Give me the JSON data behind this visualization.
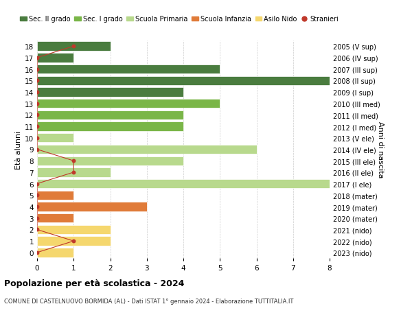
{
  "ages": [
    18,
    17,
    16,
    15,
    14,
    13,
    12,
    11,
    10,
    9,
    8,
    7,
    6,
    5,
    4,
    3,
    2,
    1,
    0
  ],
  "anni_nascita": [
    "2005 (V sup)",
    "2006 (IV sup)",
    "2007 (III sup)",
    "2008 (II sup)",
    "2009 (I sup)",
    "2010 (III med)",
    "2011 (II med)",
    "2012 (I med)",
    "2013 (V ele)",
    "2014 (IV ele)",
    "2015 (III ele)",
    "2016 (II ele)",
    "2017 (I ele)",
    "2018 (mater)",
    "2019 (mater)",
    "2020 (mater)",
    "2021 (nido)",
    "2022 (nido)",
    "2023 (nido)"
  ],
  "bar_values": [
    2,
    1,
    5,
    8,
    4,
    5,
    4,
    4,
    1,
    6,
    4,
    2,
    8,
    1,
    3,
    1,
    2,
    2,
    1
  ],
  "bar_colors": [
    "#4a7c3f",
    "#4a7c3f",
    "#4a7c3f",
    "#4a7c3f",
    "#4a7c3f",
    "#7ab648",
    "#7ab648",
    "#7ab648",
    "#b8d98d",
    "#b8d98d",
    "#b8d98d",
    "#b8d98d",
    "#b8d98d",
    "#e07b39",
    "#e07b39",
    "#e07b39",
    "#f5d76e",
    "#f5d76e",
    "#f5d76e"
  ],
  "stranieri_ages": [
    18,
    17,
    16,
    15,
    14,
    13,
    12,
    11,
    10,
    9,
    8,
    7,
    6,
    5,
    4,
    3,
    2,
    1,
    0
  ],
  "stranieri_values": [
    1,
    0,
    0,
    0,
    0,
    0,
    0,
    0,
    0,
    0,
    1,
    1,
    0,
    0,
    0,
    0,
    0,
    1,
    0
  ],
  "color_sec2": "#4a7c3f",
  "color_sec1": "#7ab648",
  "color_primaria": "#b8d98d",
  "color_infanzia": "#e07b39",
  "color_nido": "#f5d76e",
  "color_stranieri": "#c0392b",
  "title": "Popolazione per età scolastica - 2024",
  "subtitle": "COMUNE DI CASTELNUOVO BORMIDA (AL) - Dati ISTAT 1° gennaio 2024 - Elaborazione TUTTITALIA.IT",
  "ylabel": "Età alunni",
  "ylabel_right": "Anni di nascita",
  "xlim": [
    0,
    8
  ],
  "legend_labels": [
    "Sec. II grado",
    "Sec. I grado",
    "Scuola Primaria",
    "Scuola Infanzia",
    "Asilo Nido",
    "Stranieri"
  ],
  "bg_color": "#ffffff",
  "grid_color": "#cccccc"
}
